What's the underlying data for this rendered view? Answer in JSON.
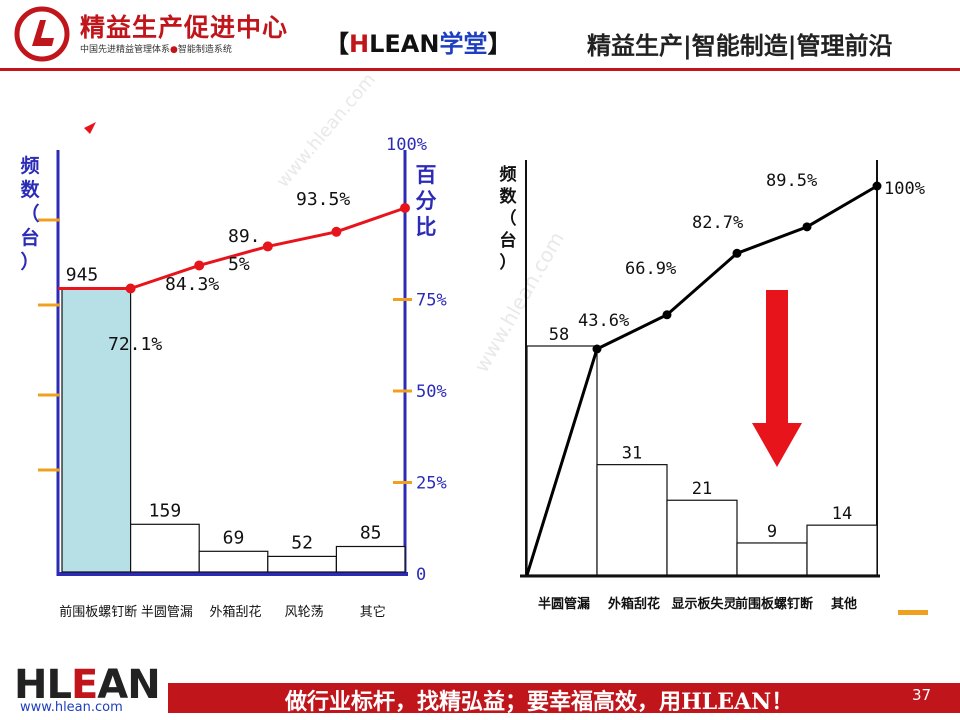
{
  "header": {
    "brand_title": "精益生产促进中心",
    "brand_subtitle_a": "中国先进精益管理体系",
    "brand_subtitle_dot": "●",
    "brand_subtitle_b": "智能制造系统",
    "academy_open": "【",
    "academy_h": "H",
    "academy_lean": "LEAN",
    "academy_cn": "学堂",
    "academy_close": "】",
    "slogan": "精益生产|智能制造|管理前沿"
  },
  "watermark": "www.hlean.com",
  "chart_data": [
    {
      "type": "bar",
      "categories": [
        "前围板螺钉断",
        "半圆管漏",
        "外箱刮花",
        "风轮荡",
        "其它"
      ],
      "values": [
        945,
        159,
        69,
        52,
        85
      ],
      "value_labels": [
        "945",
        "159",
        "69",
        "52",
        "85"
      ],
      "cumulative_percent": [
        72.1,
        84.3,
        89.5,
        93.5,
        100
      ],
      "cumulative_labels": [
        "72.1%",
        "84.3%",
        "89.\n5%",
        "93.5%",
        ""
      ],
      "ylabel": "频数（台）",
      "y2label": "百分比",
      "y2_ticks": [
        "100%",
        "75%",
        "50%",
        "25%",
        "0"
      ],
      "y2_tick_values": [
        100,
        75,
        50,
        25,
        0
      ],
      "ylim": [
        0,
        1310
      ],
      "highlight_color": "#b7e0e6",
      "line_color": "#e8141c",
      "axis_color": "#2b2bb8",
      "tick_color": "#f0a020"
    },
    {
      "type": "bar",
      "categories": [
        "半圆管漏",
        "外箱刮花",
        "显示板失灵",
        "前围板螺钉断",
        "其他"
      ],
      "values": [
        58,
        31,
        21,
        9,
        14
      ],
      "value_labels": [
        "58",
        "31",
        "21",
        "9",
        "14"
      ],
      "cumulative_percent": [
        43.6,
        66.9,
        82.7,
        89.5,
        100
      ],
      "cumulative_labels": [
        "43.6%",
        "66.9%",
        "82.7%",
        "89.5%",
        "100%"
      ],
      "ylabel": "频数（台）",
      "ylim": [
        0,
        133
      ],
      "line_color": "#000000",
      "arrow_color": "#e8141c"
    }
  ],
  "footer": {
    "logo_h": "HL",
    "logo_e": "E",
    "logo_an": "AN",
    "url": "www.hlean.com",
    "slogan": "做行业标杆，找精弘益；要幸福高效，用HLEAN！",
    "page_number": "37"
  }
}
